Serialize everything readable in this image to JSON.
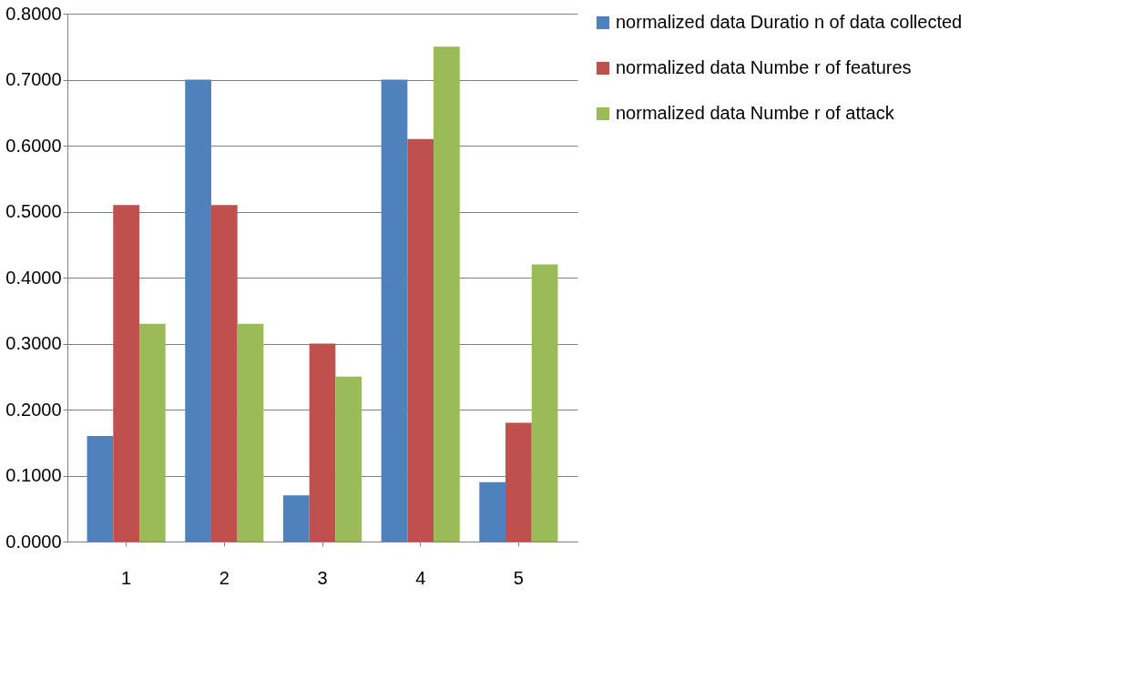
{
  "chart_data": {
    "type": "bar",
    "categories": [
      "1",
      "2",
      "3",
      "4",
      "5"
    ],
    "series": [
      {
        "name": "normalized data  Duratio n of data collected",
        "color": "#4f81bd",
        "values": [
          0.16,
          0.7,
          0.07,
          0.7,
          0.09
        ]
      },
      {
        "name": "normalized data Numbe r of features",
        "color": "#c0504d",
        "values": [
          0.51,
          0.51,
          0.3,
          0.61,
          0.18
        ]
      },
      {
        "name": "normalized data Numbe r of attack",
        "color": "#9bbb59",
        "values": [
          0.33,
          0.33,
          0.25,
          0.75,
          0.42
        ]
      }
    ],
    "ylim": [
      0,
      0.8
    ],
    "yticks": [
      {
        "value": 0,
        "label": "0.0000"
      },
      {
        "value": 0.1,
        "label": "0.1000"
      },
      {
        "value": 0.2,
        "label": "0.2000"
      },
      {
        "value": 0.3,
        "label": "0.3000"
      },
      {
        "value": 0.4,
        "label": "0.4000"
      },
      {
        "value": 0.5,
        "label": "0.5000"
      },
      {
        "value": 0.6,
        "label": "0.6000"
      },
      {
        "value": 0.7,
        "label": "0.7000"
      },
      {
        "value": 0.8,
        "label": "0.8000"
      }
    ],
    "grid": "y",
    "legend": "right"
  }
}
